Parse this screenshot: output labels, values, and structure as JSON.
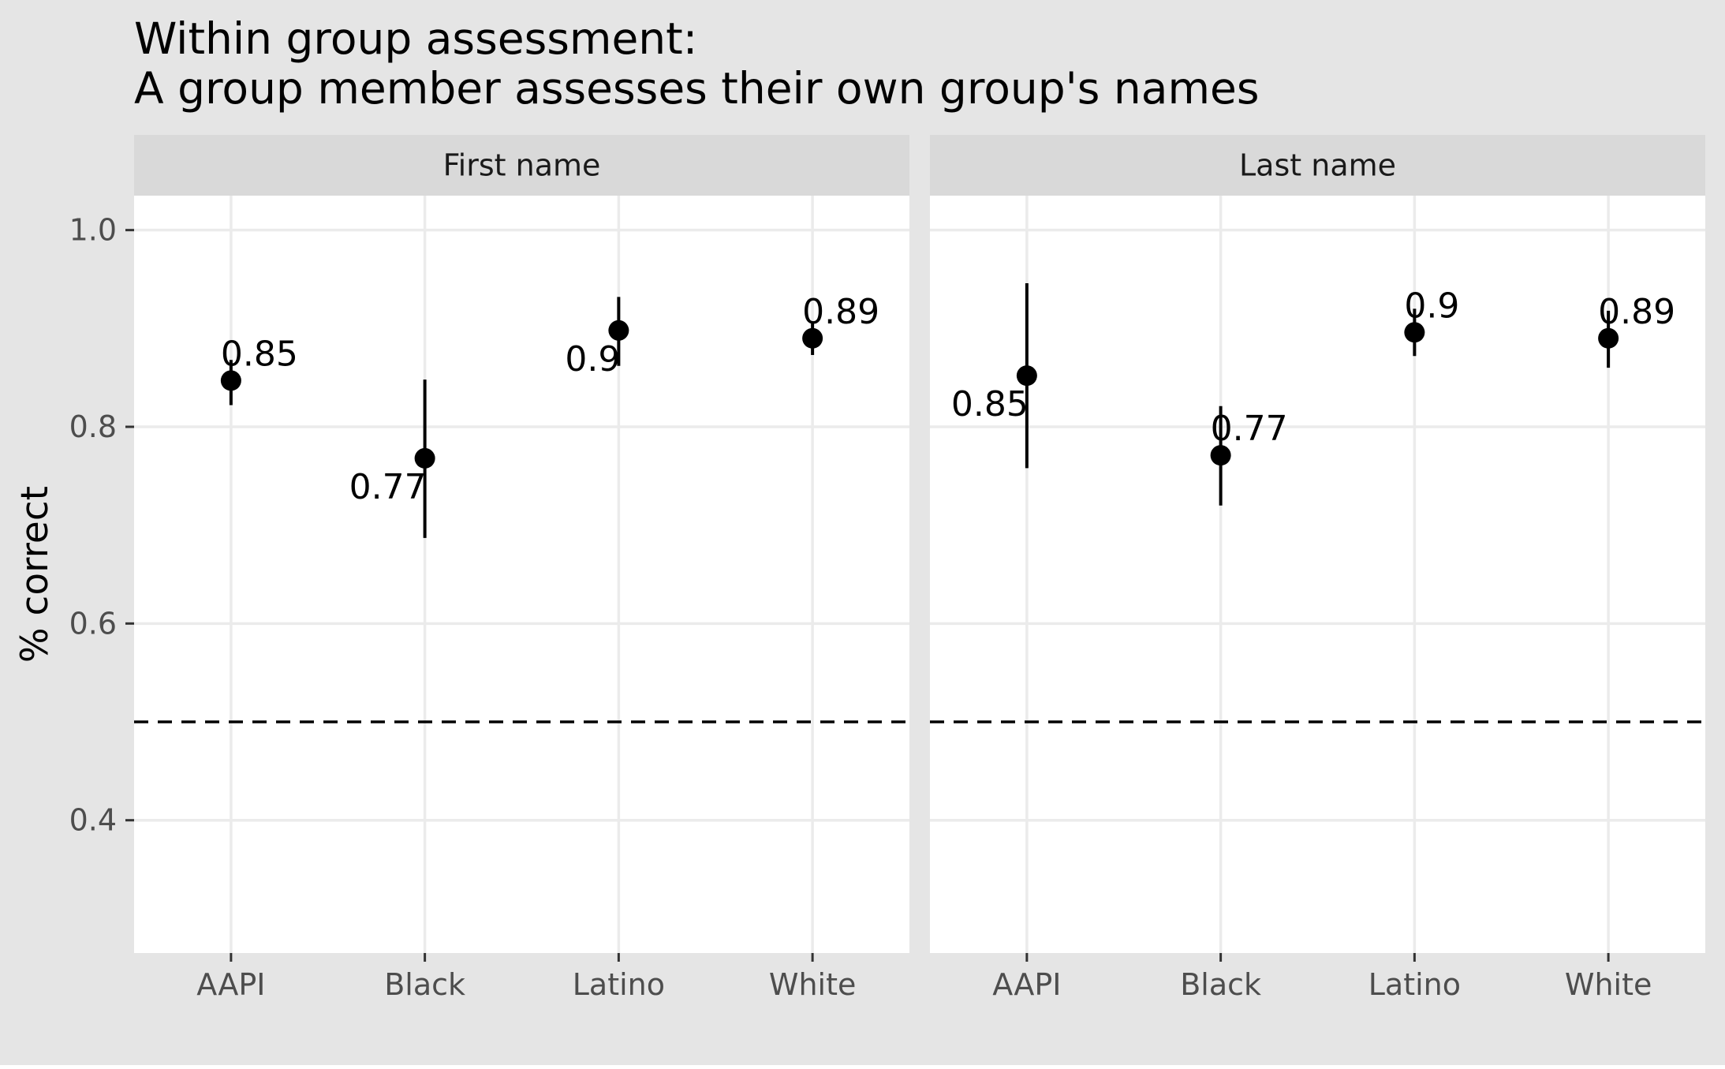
{
  "title_lines": [
    "Within group assessment:",
    "A group member assesses their own group's names"
  ],
  "colors": {
    "plot_background": "#e5e5e5",
    "panel_background": "#ffffff",
    "strip_background": "#d9d9d9",
    "grid": "#ebebeb",
    "point": "#000000",
    "reference_line": "#000000"
  },
  "chart_data": {
    "type": "scatter",
    "subtype": "point-range, faceted",
    "ylabel": "% correct",
    "xlabel": "",
    "ylim": [
      0.265,
      1.035
    ],
    "yticks": [
      0.4,
      0.6,
      0.8,
      1.0
    ],
    "ytick_labels": [
      "0.4",
      "0.6",
      "0.8",
      "1.0"
    ],
    "categories": [
      "AAPI",
      "Black",
      "Latino",
      "White"
    ],
    "reference_line": {
      "y": 0.5,
      "style": "dashed"
    },
    "grid": true,
    "legend": "none",
    "panels": [
      {
        "strip": "First name",
        "points": [
          {
            "category": "AAPI",
            "value": 0.847,
            "low": 0.822,
            "high": 0.868,
            "label": "0.85",
            "label_pos": "above-right"
          },
          {
            "category": "Black",
            "value": 0.768,
            "low": 0.687,
            "high": 0.848,
            "label": "0.77",
            "label_pos": "below-left"
          },
          {
            "category": "Latino",
            "value": 0.898,
            "low": 0.862,
            "high": 0.932,
            "label": "0.9",
            "label_pos": "below-left"
          },
          {
            "category": "White",
            "value": 0.89,
            "low": 0.873,
            "high": 0.905,
            "label": "0.89",
            "label_pos": "above-right"
          }
        ]
      },
      {
        "strip": "Last name",
        "points": [
          {
            "category": "AAPI",
            "value": 0.852,
            "low": 0.758,
            "high": 0.946,
            "label": "0.85",
            "label_pos": "below-left"
          },
          {
            "category": "Black",
            "value": 0.771,
            "low": 0.72,
            "high": 0.821,
            "label": "0.77",
            "label_pos": "above-right"
          },
          {
            "category": "Latino",
            "value": 0.896,
            "low": 0.872,
            "high": 0.92,
            "label": "0.9",
            "label_pos": "above-right"
          },
          {
            "category": "White",
            "value": 0.89,
            "low": 0.86,
            "high": 0.918,
            "label": "0.89",
            "label_pos": "above-right"
          }
        ]
      }
    ]
  }
}
